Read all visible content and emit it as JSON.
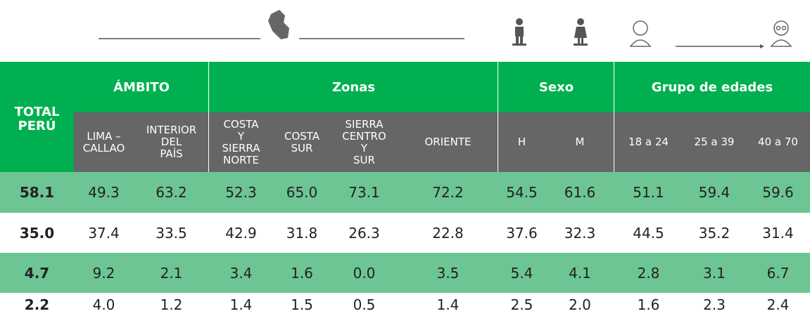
{
  "header": {
    "total": "TOTAL\nPERÚ",
    "groups": [
      {
        "label": "ÁMBITO",
        "columns": [
          "LIMA –\nCALLAO",
          "INTERIOR\nDEL\nPAÍS"
        ]
      },
      {
        "label": "Zonas",
        "columns": [
          "COSTA\nY\nSIERRA\nNORTE",
          "COSTA\nSUR",
          "SIERRA\nCENTRO\nY\nSUR",
          "ORIENTE"
        ]
      },
      {
        "label": "Sexo",
        "columns": [
          "H",
          "M"
        ]
      },
      {
        "label": "Grupo de edades",
        "columns": [
          "18 a 24",
          "25 a 39",
          "40 a 70"
        ]
      }
    ]
  },
  "rows": [
    [
      "58.1",
      "49.3",
      "63.2",
      "52.3",
      "65.0",
      "73.1",
      "72.2",
      "54.5",
      "61.6",
      "51.1",
      "59.4",
      "59.6"
    ],
    [
      "35.0",
      "37.4",
      "33.5",
      "42.9",
      "31.8",
      "26.3",
      "22.8",
      "37.6",
      "32.3",
      "44.5",
      "35.2",
      "31.4"
    ],
    [
      "4.7",
      "9.2",
      "2.1",
      "3.4",
      "1.6",
      "0.0",
      "3.5",
      "5.4",
      "4.1",
      "2.8",
      "3.1",
      "6.7"
    ],
    [
      "2.2",
      "4.0",
      "1.2",
      "1.4",
      "1.5",
      "0.5",
      "1.4",
      "2.5",
      "2.0",
      "1.6",
      "2.3",
      "2.4"
    ]
  ]
}
